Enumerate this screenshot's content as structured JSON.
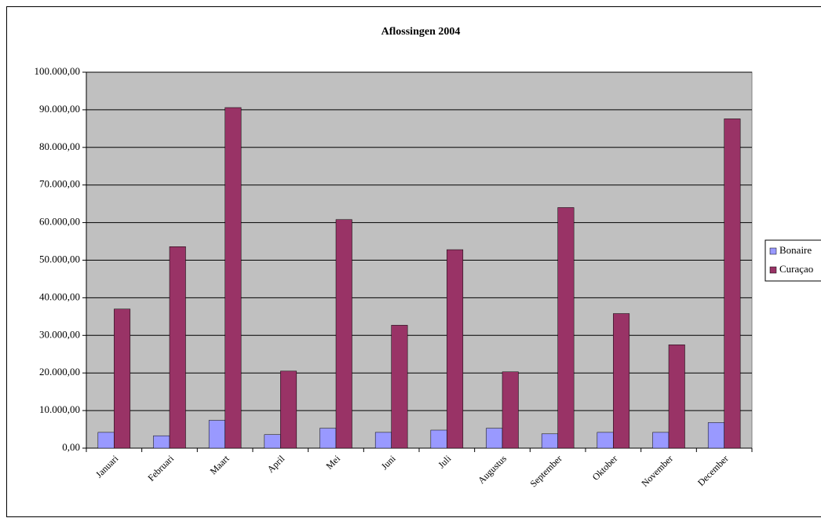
{
  "chart_data": {
    "type": "bar",
    "title": "Aflossingen 2004",
    "categories": [
      "Januari",
      "Februari",
      "Maart",
      "April",
      "Mei",
      "Juni",
      "Juli",
      "Augustus",
      "September",
      "Oktober",
      "November",
      "December"
    ],
    "series": [
      {
        "name": "Bonaire",
        "color": "#9999ff",
        "values": [
          4200,
          3300,
          7400,
          3600,
          5300,
          4200,
          4800,
          5300,
          3800,
          4200,
          4200,
          6800
        ]
      },
      {
        "name": "Curaçao",
        "color": "#993366",
        "values": [
          37000,
          53600,
          90600,
          20500,
          60800,
          32700,
          52800,
          20300,
          64000,
          35800,
          27500,
          87600
        ]
      }
    ],
    "ylim": [
      0,
      100000
    ],
    "yticks": [
      {
        "value": 0,
        "label": "0,00"
      },
      {
        "value": 10000,
        "label": "10.000,00"
      },
      {
        "value": 20000,
        "label": "20.000,00"
      },
      {
        "value": 30000,
        "label": "30.000,00"
      },
      {
        "value": 40000,
        "label": "40.000,00"
      },
      {
        "value": 50000,
        "label": "50.000,00"
      },
      {
        "value": 60000,
        "label": "60.000,00"
      },
      {
        "value": 70000,
        "label": "70.000,00"
      },
      {
        "value": 80000,
        "label": "80.000,00"
      },
      {
        "value": 90000,
        "label": "90.000,00"
      },
      {
        "value": 100000,
        "label": "100.000,00"
      }
    ],
    "grid": true,
    "legend": "right"
  }
}
